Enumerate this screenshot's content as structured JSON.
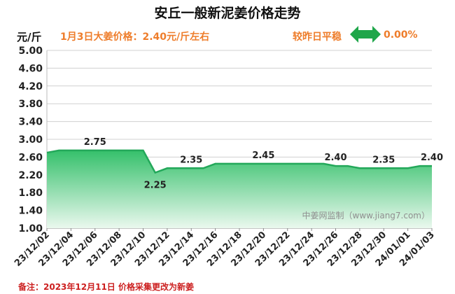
{
  "header": {
    "title": "安丘一般新泥姜价格走势",
    "unit": "元/斤",
    "price_note": "1月3日大姜价格：2.40元/斤左右",
    "compare_label": "较昨日平稳",
    "change_value": "0.00%"
  },
  "footer": {
    "note": "备注：2023年12月11日 价格采集更改为新姜",
    "watermark": "中姜网监制（www.jiang7.com）"
  },
  "colors": {
    "title": "#111111",
    "accent_orange": "#ee7d2b",
    "footnote_red": "#cc1f1f",
    "arrow_green": "#1fa64a",
    "line_green": "#23a85a",
    "fill_top": "#35c06b",
    "fill_bottom": "#eaf8ee",
    "grid": "#d0d0d0",
    "axis_label": "#222222"
  },
  "chart_data": {
    "type": "area",
    "x": [
      "23/12/02",
      "23/12/03",
      "23/12/04",
      "23/12/05",
      "23/12/06",
      "23/12/07",
      "23/12/08",
      "23/12/09",
      "23/12/10",
      "23/12/11",
      "23/12/12",
      "23/12/13",
      "23/12/14",
      "23/12/15",
      "23/12/16",
      "23/12/17",
      "23/12/18",
      "23/12/19",
      "23/12/20",
      "23/12/21",
      "23/12/22",
      "23/12/23",
      "23/12/24",
      "23/12/25",
      "23/12/26",
      "23/12/27",
      "23/12/28",
      "23/12/29",
      "23/12/30",
      "23/12/31",
      "24/01/01",
      "24/01/02",
      "24/01/03"
    ],
    "values": [
      2.7,
      2.75,
      2.75,
      2.75,
      2.75,
      2.75,
      2.75,
      2.75,
      2.75,
      2.25,
      2.35,
      2.35,
      2.35,
      2.35,
      2.45,
      2.45,
      2.45,
      2.45,
      2.45,
      2.45,
      2.45,
      2.45,
      2.45,
      2.45,
      2.4,
      2.4,
      2.35,
      2.35,
      2.35,
      2.35,
      2.35,
      2.4,
      2.4
    ],
    "x_tick_labels": [
      "23/12/02",
      "23/12/04",
      "23/12/06",
      "23/12/08",
      "23/12/10",
      "23/12/12",
      "23/12/14",
      "23/12/16",
      "23/12/18",
      "23/12/20",
      "23/12/22",
      "23/12/24",
      "23/12/26",
      "23/12/28",
      "23/12/30",
      "24/01/01",
      "24/01/03"
    ],
    "x_tick_indices": [
      0,
      2,
      4,
      6,
      8,
      10,
      12,
      14,
      16,
      18,
      20,
      22,
      24,
      26,
      28,
      30,
      32
    ],
    "y_ticks": [
      "5.00",
      "4.60",
      "4.20",
      "3.80",
      "3.40",
      "3.00",
      "2.60",
      "2.20",
      "1.80",
      "1.40",
      "1.00"
    ],
    "ylim": [
      1.0,
      5.0
    ],
    "data_labels": [
      {
        "index": 4,
        "text": "2.75"
      },
      {
        "index": 9,
        "text": "2.25"
      },
      {
        "index": 12,
        "text": "2.35"
      },
      {
        "index": 18,
        "text": "2.45"
      },
      {
        "index": 24,
        "text": "2.40"
      },
      {
        "index": 28,
        "text": "2.35"
      },
      {
        "index": 32,
        "text": "2.40"
      }
    ],
    "grid": true,
    "legend": "none"
  }
}
